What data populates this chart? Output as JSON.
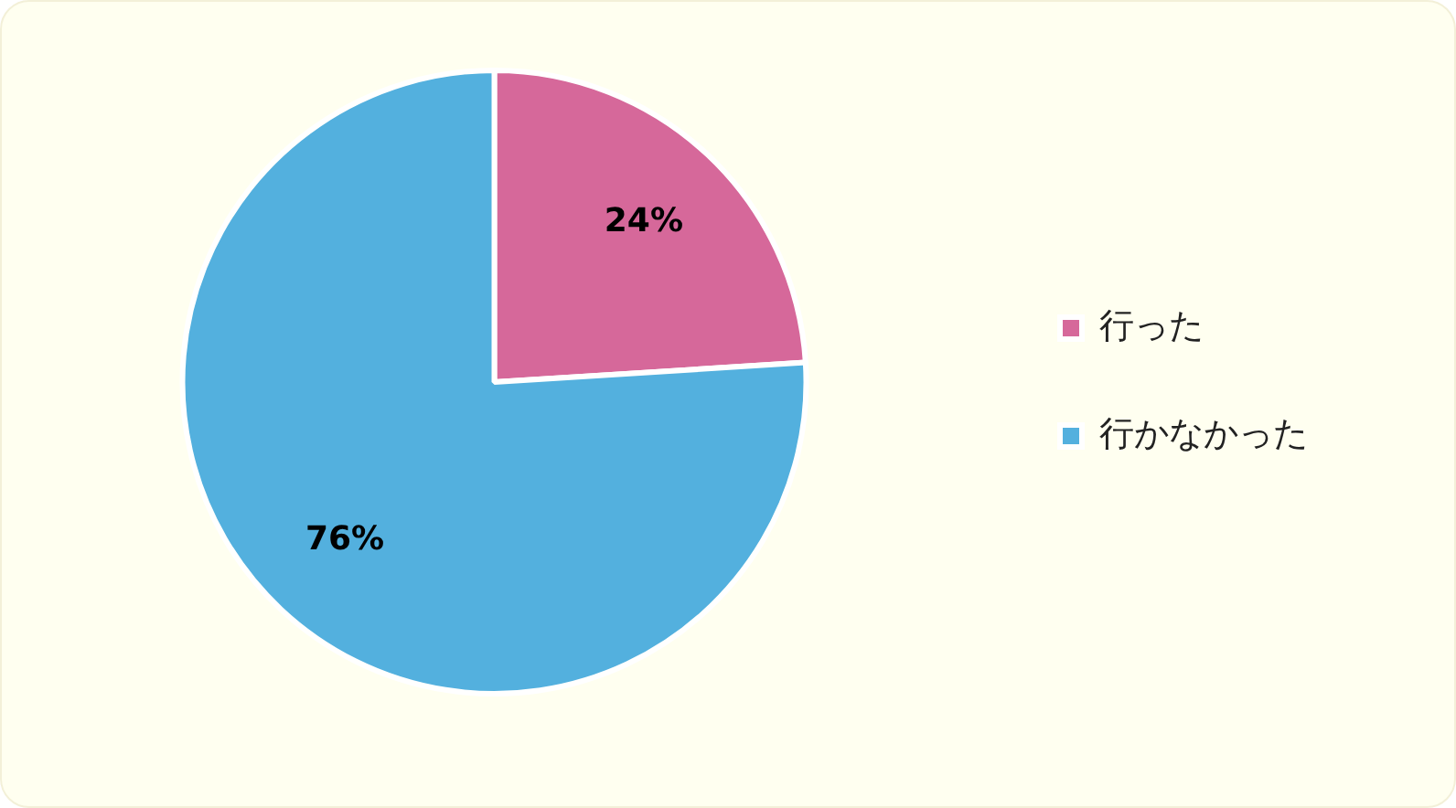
{
  "chart_data": {
    "type": "pie",
    "categories": [
      "行った",
      "行かなかった"
    ],
    "values": [
      24,
      76
    ],
    "colors": [
      "#d6689a",
      "#53b0de"
    ],
    "value_labels": [
      "24%",
      "76%"
    ],
    "legend": "right"
  }
}
